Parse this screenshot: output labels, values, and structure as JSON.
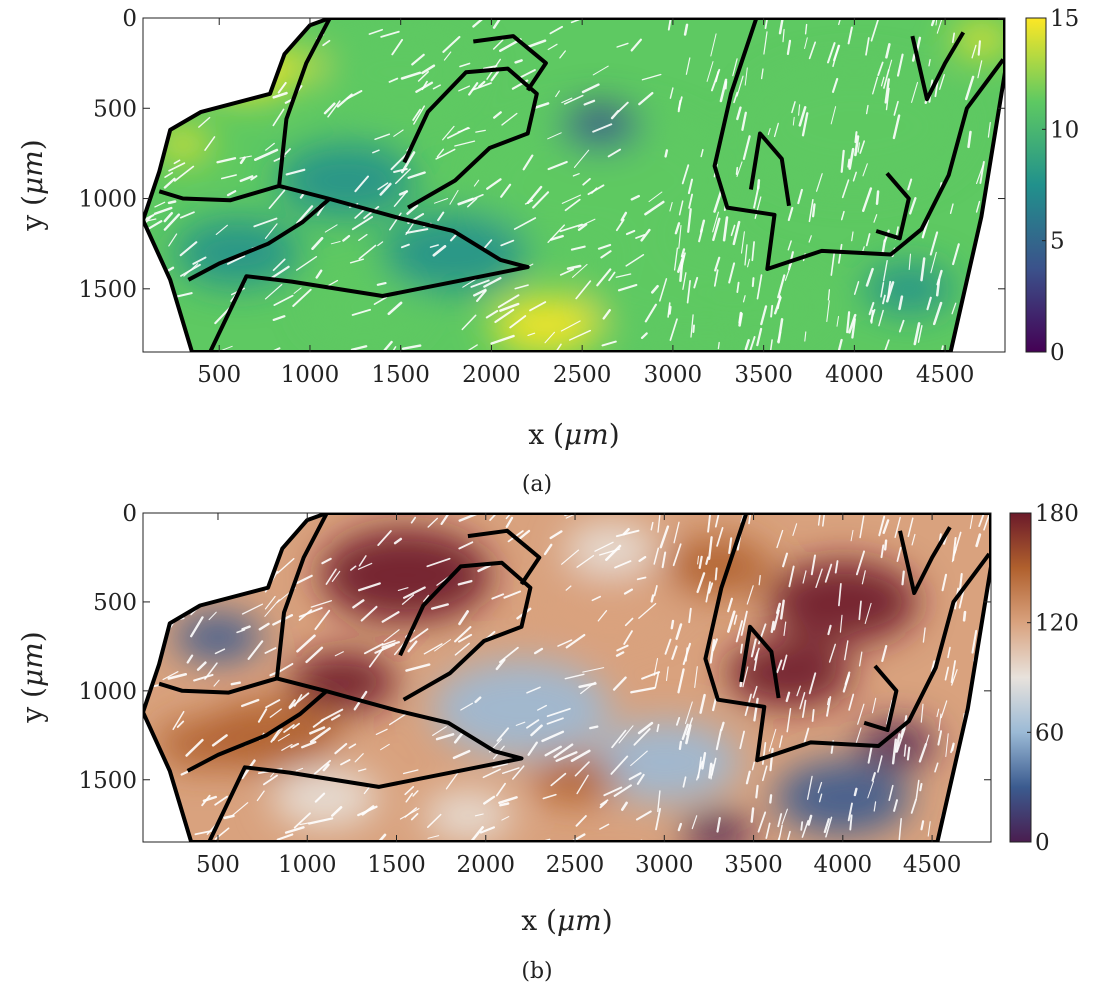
{
  "chart_data": [
    {
      "type": "heatmap",
      "caption": "(a)",
      "xlabel": "x (μm)",
      "ylabel": "y (μm)",
      "xlim": [
        80,
        4830
      ],
      "ylim": [
        1850,
        0
      ],
      "x_ticks": [
        500,
        1000,
        1500,
        2000,
        2500,
        3000,
        3500,
        4000,
        4500
      ],
      "y_ticks": [
        0,
        500,
        1000,
        1500
      ],
      "colorbar": {
        "colormap": "viridis",
        "range": [
          0,
          15
        ],
        "ticks": [
          0,
          5,
          10,
          15
        ],
        "colors": [
          "#440154",
          "#3b528b",
          "#21918c",
          "#5ec962",
          "#fde725"
        ]
      }
    },
    {
      "type": "heatmap",
      "caption": "(b)",
      "xlabel": "x (μm)",
      "ylabel": "y (μm)",
      "xlim": [
        80,
        4830
      ],
      "ylim": [
        1850,
        0
      ],
      "x_ticks": [
        500,
        1000,
        1500,
        2000,
        2500,
        3000,
        3500,
        4000,
        4500
      ],
      "y_ticks": [
        0,
        500,
        1000,
        1500
      ],
      "colorbar": {
        "colormap": "twilight",
        "range": [
          0,
          180
        ],
        "ticks": [
          0,
          60,
          120,
          180
        ],
        "colors": [
          "#4a1d4f",
          "#3b5b8f",
          "#9bbad6",
          "#e8e2dc",
          "#d9a27e",
          "#b0602d",
          "#6b1a2a"
        ]
      }
    }
  ]
}
